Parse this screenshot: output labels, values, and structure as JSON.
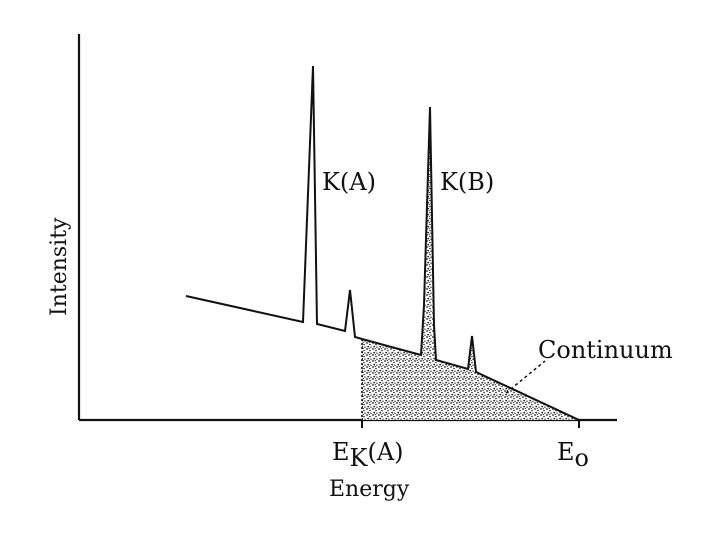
{
  "diagram": {
    "xlabel": "Energy",
    "ylabel": "Intensity",
    "peak_a_label": "K(A)",
    "peak_b_label": "K(B)",
    "continuum_label": "Continuum",
    "edge_label_prefix": "E",
    "edge_label_sub": "K",
    "edge_label_suffix": "(A)",
    "e0_label_prefix": "E",
    "e0_label_sub": "o"
  },
  "colors": {
    "ink": "#111111",
    "background": "#ffffff",
    "stipple": "#222222"
  }
}
